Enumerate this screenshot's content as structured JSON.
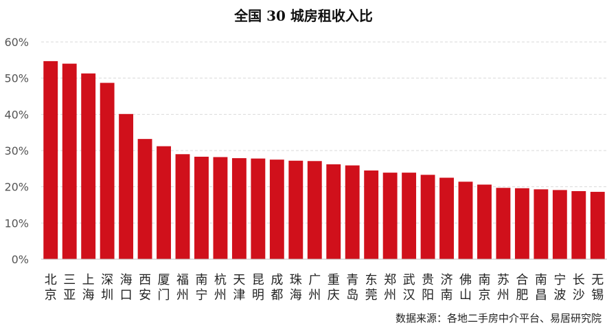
{
  "chart_data": {
    "type": "bar",
    "title": "全国 30 城房租收入比",
    "source": "数据来源：各地二手房中介平台、易居研究院",
    "categories": [
      "北京",
      "三亚",
      "上海",
      "深圳",
      "海口",
      "西安",
      "厦门",
      "福州",
      "南宁",
      "杭州",
      "天津",
      "昆明",
      "成都",
      "珠海",
      "广州",
      "重庆",
      "青岛",
      "东莞",
      "郑州",
      "武汉",
      "贵阳",
      "济南",
      "佛山",
      "南京",
      "苏州",
      "合肥",
      "南昌",
      "宁波",
      "长沙",
      "无锡"
    ],
    "values": [
      54.7,
      54.0,
      51.3,
      48.7,
      40.1,
      33.2,
      31.2,
      29.0,
      28.3,
      28.2,
      27.9,
      27.8,
      27.5,
      27.2,
      27.1,
      26.2,
      25.9,
      24.5,
      23.9,
      23.9,
      23.3,
      22.5,
      21.4,
      20.6,
      19.7,
      19.6,
      19.3,
      19.1,
      18.8,
      18.6
    ],
    "ylim": [
      0,
      60
    ],
    "yticks": [
      0,
      10,
      20,
      30,
      40,
      50,
      60
    ],
    "ytick_labels": [
      "0%",
      "10%",
      "20%",
      "30%",
      "40%",
      "50%",
      "60%"
    ],
    "xlabel": "",
    "ylabel": "",
    "grid": true,
    "bar_color": "#d0101b"
  }
}
